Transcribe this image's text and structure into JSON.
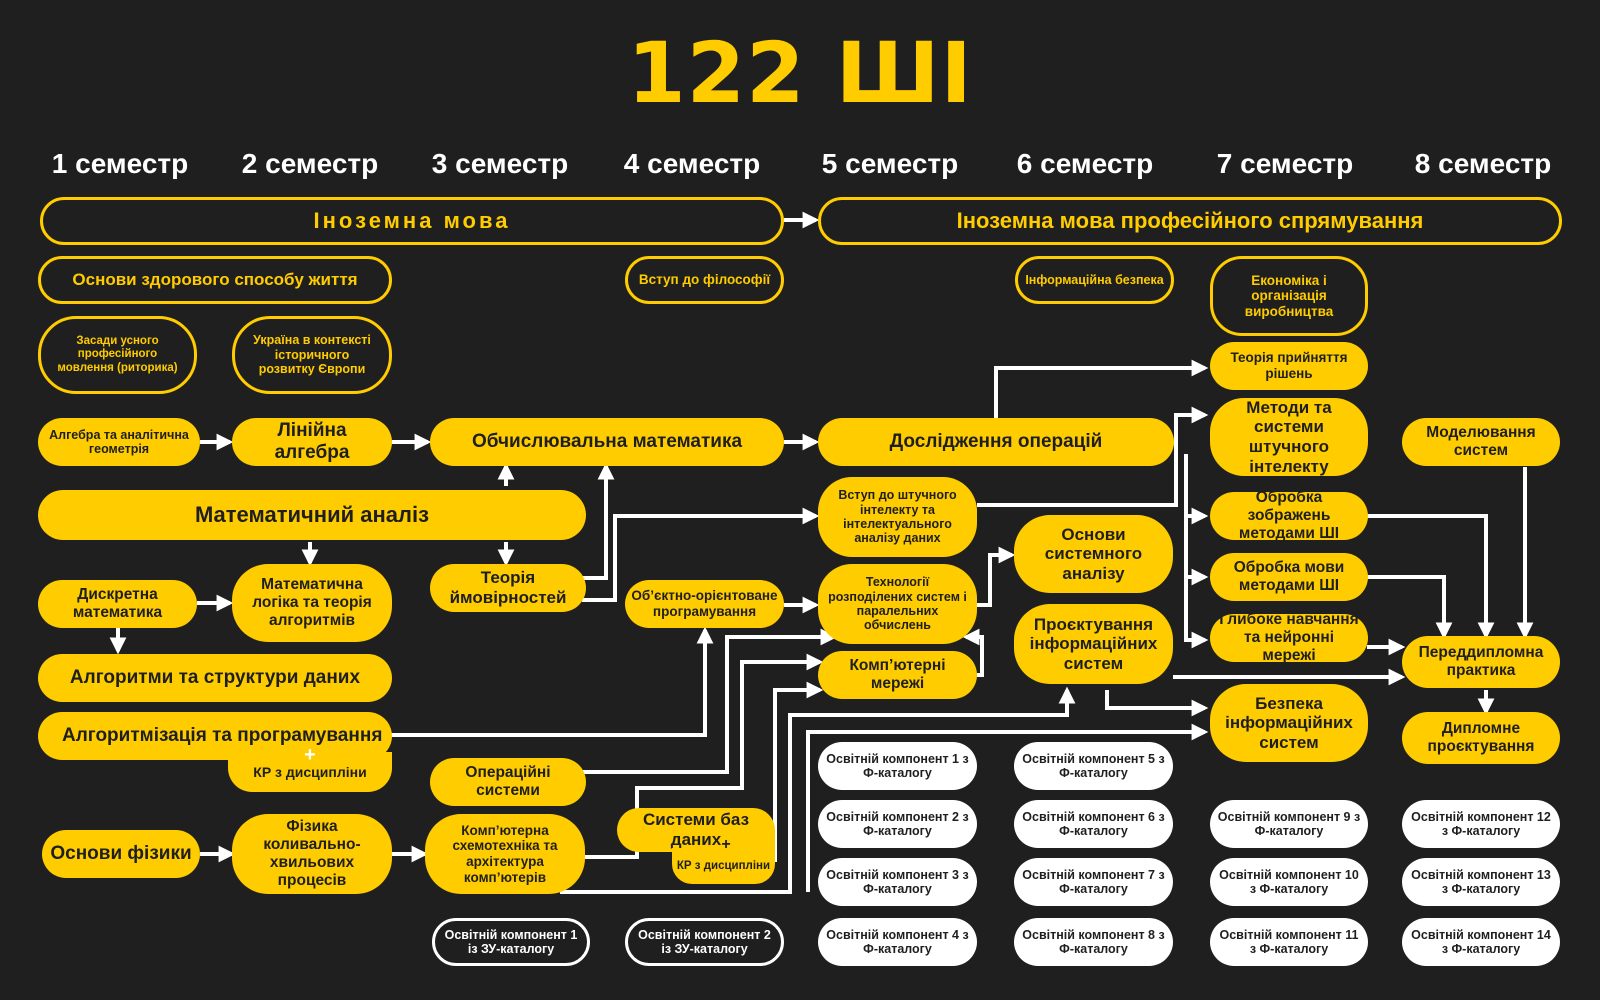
{
  "title": "122 ШІ",
  "semesters": [
    "1 семестр",
    "2 семестр",
    "3 семестр",
    "4 семестр",
    "5 семестр",
    "6 семестр",
    "7 семестр",
    "8 семестр"
  ],
  "nodes": {
    "foreign_lang": "Іноземна мова",
    "foreign_lang_prof": "Іноземна мова професійного спрямування",
    "healthy_life": "Основи здорового способу життя",
    "philosophy": "Вступ до філософії",
    "info_security_basics": "Інформаційна безпека",
    "economics": "Економіка і організація виробництва",
    "rhetoric": "Засади усного професійного мовлення (риторика)",
    "ukraine_europe": "Україна в контексті історичного розвитку Європи",
    "decision_theory": "Теорія прийняття рішень",
    "algebra_geometry": "Алгебра та аналітична геометрія",
    "linear_algebra": "Лінійна алгебра",
    "computational_math": "Обчислювальна математика",
    "operations_research": "Дослідження операцій",
    "ai_methods": "Методи та системи штучного інтелекту",
    "modeling": "Моделювання систем",
    "math_analysis": "Математичний аналіз",
    "intro_ai": "Вступ до штучного інтелекту та інтелектуального аналізу даних",
    "systems_analysis": "Основи системного аналізу",
    "image_processing": "Обробка зображень методами ШІ",
    "discrete_math": "Дискретна математика",
    "math_logic": "Математична логіка та теорія алгоритмів",
    "probability": "Теорія ймовірностей",
    "oop": "Об’єктно-орієнтоване програмування",
    "distributed": "Технології розподілених систем і паралельних обчислень",
    "language_processing": "Обробка мови методами ШІ",
    "is_design": "Проєктування інформаційних систем",
    "deep_learning": "Глибоке навчання та нейронні мережі",
    "prediploma": "Переддипломна практика",
    "algorithms_ds": "Алгоритми та структури даних",
    "networks": "Комп’ютерні мережі",
    "is_security": "Безпека інформаційних систем",
    "algo_programming": "Алгоритмізація та програмування",
    "plus": "+",
    "kr": "КР з дисципліни",
    "diploma": "Дипломне проєктування",
    "os": "Операційні системи",
    "physics_basics": "Основи фізики",
    "wave_physics": "Фізика коливально-хвильових процесів",
    "computer_arch": "Комп’ютерна схемотехніка та архітектура комп’ютерів",
    "databases": "Системи баз даних",
    "zu1": "Освітній компонент 1 із ЗУ-каталогу",
    "zu2": "Освітній компонент 2 із ЗУ-каталогу"
  },
  "electives": [
    "Освітній компонент 1 з Ф-каталогу",
    "Освітній компонент 2 з Ф-каталогу",
    "Освітній компонент 3 з Ф-каталогу",
    "Освітній компонент 4 з Ф-каталогу",
    "Освітній компонент 5 з Ф-каталогу",
    "Освітній компонент 6 з Ф-каталогу",
    "Освітній компонент 7 з Ф-каталогу",
    "Освітній компонент 8 з Ф-каталогу",
    "Освітній компонент 9 з Ф-каталогу",
    "Освітній компонент 10 з Ф-каталогу",
    "Освітній компонент 11 з Ф-каталогу",
    "Освітній компонент 12 з Ф-каталогу",
    "Освітній компонент 13 з Ф-каталогу",
    "Освітній компонент 14 з Ф-каталогу"
  ],
  "colors": {
    "background": "#1f1f1f",
    "accent": "#ffcc00",
    "text_dark": "#1f1f1f",
    "white": "#ffffff"
  }
}
